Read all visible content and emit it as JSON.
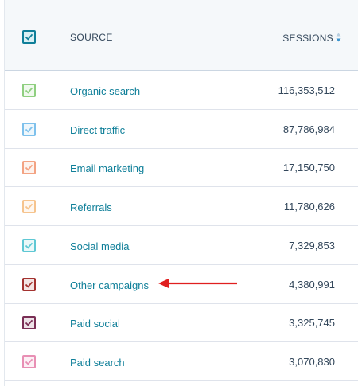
{
  "header": {
    "source_label": "SOURCE",
    "sessions_label": "SESSIONS",
    "sort_icon": "sort-desc-icon",
    "select_all_checked": true,
    "select_all_color": "#0f7f99"
  },
  "rows": [
    {
      "source": "Organic search",
      "sessions": "116,353,512",
      "checked": true,
      "color": "#8fcf80"
    },
    {
      "source": "Direct traffic",
      "sessions": "87,786,984",
      "checked": true,
      "color": "#7ec1ec"
    },
    {
      "source": "Email marketing",
      "sessions": "17,150,750",
      "checked": true,
      "color": "#f3a383"
    },
    {
      "source": "Referrals",
      "sessions": "11,780,626",
      "checked": true,
      "color": "#f6c48e"
    },
    {
      "source": "Social media",
      "sessions": "7,329,853",
      "checked": true,
      "color": "#5fc8d4"
    },
    {
      "source": "Other campaigns",
      "sessions": "4,380,991",
      "checked": true,
      "color": "#a3322f"
    },
    {
      "source": "Paid social",
      "sessions": "3,325,745",
      "checked": true,
      "color": "#7a2f55"
    },
    {
      "source": "Paid search",
      "sessions": "3,070,830",
      "checked": true,
      "color": "#e88fb4"
    }
  ],
  "annotation": {
    "arrow_icon": "red-arrow-icon",
    "color": "#e01f1f",
    "points_to": "Other campaigns"
  }
}
